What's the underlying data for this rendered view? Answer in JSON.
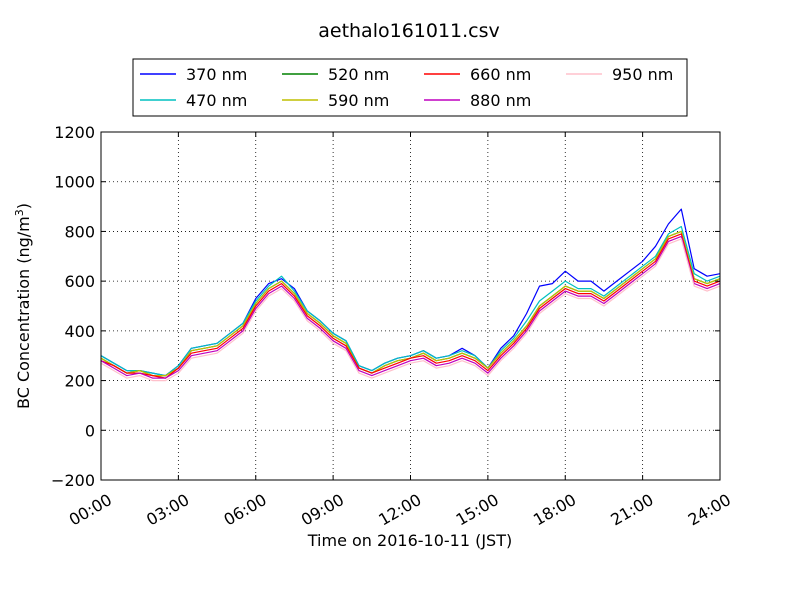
{
  "chart_data": {
    "type": "line",
    "title": "aethalo161011.csv",
    "xlabel": "Time on 2016-10-11 (JST)",
    "ylabel_main": "BC Concentration (ng/m",
    "ylabel_sup": "3",
    "ylabel_end": ")",
    "xlim_hours": [
      0,
      24
    ],
    "ylim": [
      -200,
      1200
    ],
    "x_ticks": [
      0,
      3,
      6,
      9,
      12,
      15,
      18,
      21,
      24
    ],
    "x_tick_labels": [
      "00:00",
      "03:00",
      "06:00",
      "09:00",
      "12:00",
      "15:00",
      "18:00",
      "21:00",
      "24:00"
    ],
    "y_ticks": [
      -200,
      0,
      200,
      400,
      600,
      800,
      1000,
      1200
    ],
    "y_tick_labels": [
      "−200",
      "0",
      "200",
      "400",
      "600",
      "800",
      "1000",
      "1200"
    ],
    "grid": true,
    "legend_position": "above plot, 4 columns",
    "sample_times_hours": [
      0,
      0.5,
      1,
      1.5,
      2,
      2.5,
      3,
      3.5,
      4,
      4.5,
      5,
      5.5,
      6,
      6.5,
      7,
      7.5,
      8,
      8.5,
      9,
      9.5,
      10,
      10.5,
      11,
      11.5,
      12,
      12.5,
      13,
      13.5,
      14,
      14.5,
      15,
      15.5,
      16,
      16.5,
      17,
      17.5,
      18,
      18.5,
      19,
      19.5,
      20,
      20.5,
      21,
      21.5,
      22,
      22.5,
      23,
      23.5,
      24
    ],
    "series": [
      {
        "name": "370 nm",
        "color": "#0000ff",
        "values": [
          300,
          270,
          240,
          240,
          230,
          220,
          260,
          330,
          340,
          350,
          390,
          430,
          530,
          590,
          610,
          570,
          480,
          440,
          390,
          360,
          260,
          240,
          270,
          290,
          300,
          320,
          290,
          300,
          330,
          300,
          250,
          330,
          380,
          470,
          580,
          590,
          640,
          600,
          600,
          560,
          600,
          640,
          680,
          740,
          830,
          890,
          650,
          620,
          630
        ]
      },
      {
        "name": "470 nm",
        "color": "#00c0c0",
        "values": [
          300,
          270,
          240,
          240,
          230,
          220,
          260,
          330,
          340,
          350,
          390,
          430,
          520,
          580,
          620,
          560,
          480,
          440,
          390,
          360,
          260,
          240,
          270,
          290,
          300,
          320,
          290,
          300,
          320,
          300,
          250,
          320,
          370,
          440,
          520,
          560,
          600,
          570,
          570,
          540,
          580,
          620,
          660,
          700,
          790,
          820,
          630,
          600,
          620
        ]
      },
      {
        "name": "520 nm",
        "color": "#008000",
        "values": [
          290,
          260,
          230,
          240,
          220,
          220,
          250,
          320,
          330,
          340,
          380,
          420,
          510,
          570,
          600,
          550,
          470,
          430,
          380,
          350,
          250,
          230,
          260,
          280,
          290,
          310,
          280,
          290,
          310,
          290,
          250,
          310,
          360,
          420,
          500,
          540,
          580,
          560,
          560,
          530,
          570,
          610,
          650,
          690,
          780,
          800,
          610,
          590,
          610
        ]
      },
      {
        "name": "590 nm",
        "color": "#bfbf00",
        "values": [
          290,
          260,
          230,
          240,
          220,
          220,
          250,
          320,
          330,
          340,
          380,
          420,
          510,
          570,
          600,
          550,
          470,
          430,
          380,
          350,
          250,
          230,
          260,
          280,
          290,
          310,
          280,
          290,
          310,
          290,
          250,
          310,
          360,
          420,
          500,
          540,
          580,
          560,
          560,
          530,
          570,
          610,
          650,
          690,
          780,
          800,
          610,
          590,
          610
        ]
      },
      {
        "name": "660 nm",
        "color": "#ff0000",
        "values": [
          280,
          260,
          230,
          230,
          220,
          210,
          250,
          310,
          320,
          330,
          370,
          410,
          500,
          560,
          590,
          540,
          460,
          420,
          370,
          340,
          250,
          230,
          250,
          270,
          290,
          300,
          270,
          280,
          300,
          280,
          240,
          300,
          350,
          410,
          490,
          530,
          570,
          550,
          550,
          520,
          560,
          600,
          640,
          680,
          770,
          790,
          600,
          580,
          600
        ]
      },
      {
        "name": "880 nm",
        "color": "#bf00bf",
        "values": [
          280,
          250,
          220,
          230,
          210,
          210,
          240,
          300,
          310,
          320,
          360,
          400,
          490,
          550,
          580,
          530,
          450,
          410,
          360,
          330,
          240,
          220,
          240,
          260,
          280,
          290,
          260,
          270,
          290,
          270,
          230,
          290,
          340,
          400,
          480,
          520,
          560,
          540,
          540,
          510,
          550,
          590,
          630,
          670,
          760,
          780,
          590,
          570,
          590
        ]
      },
      {
        "name": "950 nm",
        "color": "#ffc0cb",
        "values": [
          270,
          240,
          210,
          220,
          200,
          200,
          230,
          290,
          300,
          310,
          350,
          390,
          480,
          540,
          570,
          520,
          440,
          400,
          350,
          320,
          230,
          210,
          230,
          250,
          270,
          280,
          250,
          260,
          280,
          260,
          220,
          280,
          330,
          390,
          470,
          510,
          550,
          530,
          530,
          500,
          540,
          580,
          620,
          660,
          750,
          770,
          580,
          560,
          580
        ]
      }
    ]
  }
}
